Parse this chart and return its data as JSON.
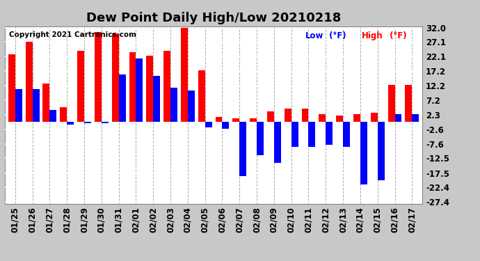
{
  "title": "Dew Point Daily High/Low 20210218",
  "copyright": "Copyright 2021 Cartronics.com",
  "dates": [
    "01/25",
    "01/26",
    "01/27",
    "01/28",
    "01/29",
    "01/30",
    "01/31",
    "02/01",
    "02/02",
    "02/03",
    "02/04",
    "02/05",
    "02/06",
    "02/07",
    "02/08",
    "02/09",
    "02/10",
    "02/11",
    "02/12",
    "02/13",
    "02/14",
    "02/15",
    "02/16",
    "02/17"
  ],
  "high": [
    23.0,
    27.1,
    13.0,
    5.0,
    24.0,
    30.5,
    30.0,
    23.5,
    22.5,
    24.0,
    32.0,
    17.5,
    1.5,
    1.0,
    1.0,
    3.5,
    4.5,
    4.5,
    2.5,
    2.0,
    2.5,
    3.0,
    12.5,
    12.5
  ],
  "low": [
    11.0,
    11.0,
    4.0,
    -1.0,
    -0.5,
    -0.5,
    16.0,
    21.5,
    15.5,
    11.5,
    10.5,
    -2.0,
    -2.5,
    -18.5,
    -11.5,
    -14.0,
    -8.5,
    -8.5,
    -8.0,
    -8.5,
    -21.5,
    -20.0,
    2.5,
    2.5
  ],
  "yticks": [
    32.0,
    27.1,
    22.1,
    17.2,
    12.2,
    7.2,
    2.3,
    -2.6,
    -7.6,
    -12.5,
    -17.5,
    -22.4,
    -27.4
  ],
  "background_color": "#c8c8c8",
  "plot_bg_color": "#ffffff",
  "high_color": "#ff0000",
  "low_color": "#0000ff",
  "grid_color": "#aaaaaa",
  "title_color": "#000000",
  "copyright_color": "#000000",
  "legend_low_color": "#0000ff",
  "legend_high_color": "#ff0000",
  "bar_width": 0.4
}
